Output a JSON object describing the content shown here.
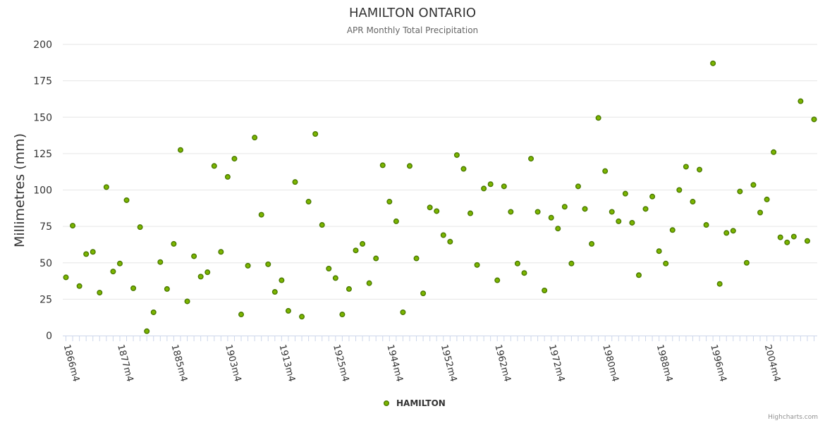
{
  "chart_data": {
    "type": "scatter",
    "title": "HAMILTON ONTARIO",
    "subtitle": "APR Monthly Total Precipitation",
    "xlabel": "",
    "ylabel": "Millimetres (mm)",
    "ylim": [
      0,
      200
    ],
    "yticks": [
      0,
      25,
      50,
      75,
      100,
      125,
      150,
      175,
      200
    ],
    "x_tick_labels": [
      "1866m4",
      "1877m4",
      "1885m4",
      "1903m4",
      "1913m4",
      "1925m4",
      "1944m4",
      "1952m4",
      "1962m4",
      "1972m4",
      "1980m4",
      "1988m4",
      "1996m4",
      "2004m4"
    ],
    "x_tick_positions": [
      0,
      8,
      16,
      24,
      32,
      40,
      48,
      56,
      64,
      72,
      80,
      88,
      96,
      104
    ],
    "grid": true,
    "legend": "bottom-center",
    "series": [
      {
        "name": "HAMILTON",
        "color": "#7cb500",
        "values": [
          40,
          75.5,
          34,
          56,
          57.5,
          29.5,
          102,
          44,
          49.5,
          93,
          32.5,
          74.5,
          3,
          16,
          50.5,
          32,
          63,
          127.5,
          23.5,
          54.5,
          40.5,
          43.5,
          116.5,
          57.5,
          109,
          121.5,
          14.5,
          48,
          136,
          83,
          49,
          30,
          38,
          17,
          105.5,
          13,
          92,
          138.5,
          76,
          46,
          39.5,
          14.5,
          32,
          58.5,
          63,
          36,
          53,
          117,
          92,
          78.5,
          16,
          116.5,
          53,
          29,
          88,
          85.5,
          69,
          64.5,
          124,
          114.5,
          84,
          48.5,
          101,
          104,
          38,
          102.5,
          85,
          49.5,
          43,
          121.5,
          85,
          31,
          81,
          73.5,
          88.5,
          49.5,
          102.5,
          87,
          63,
          149.5,
          113,
          85,
          78.5,
          97.5,
          77.5,
          41.5,
          87,
          95.5,
          58,
          49.5,
          72.5,
          100,
          116,
          92,
          114,
          76,
          187,
          35.5,
          70.5,
          72,
          99,
          50,
          103.5,
          84.5,
          93.5,
          126,
          67.5,
          64,
          68,
          161,
          65,
          148.5
        ]
      }
    ]
  },
  "credits": "Highcharts.com"
}
